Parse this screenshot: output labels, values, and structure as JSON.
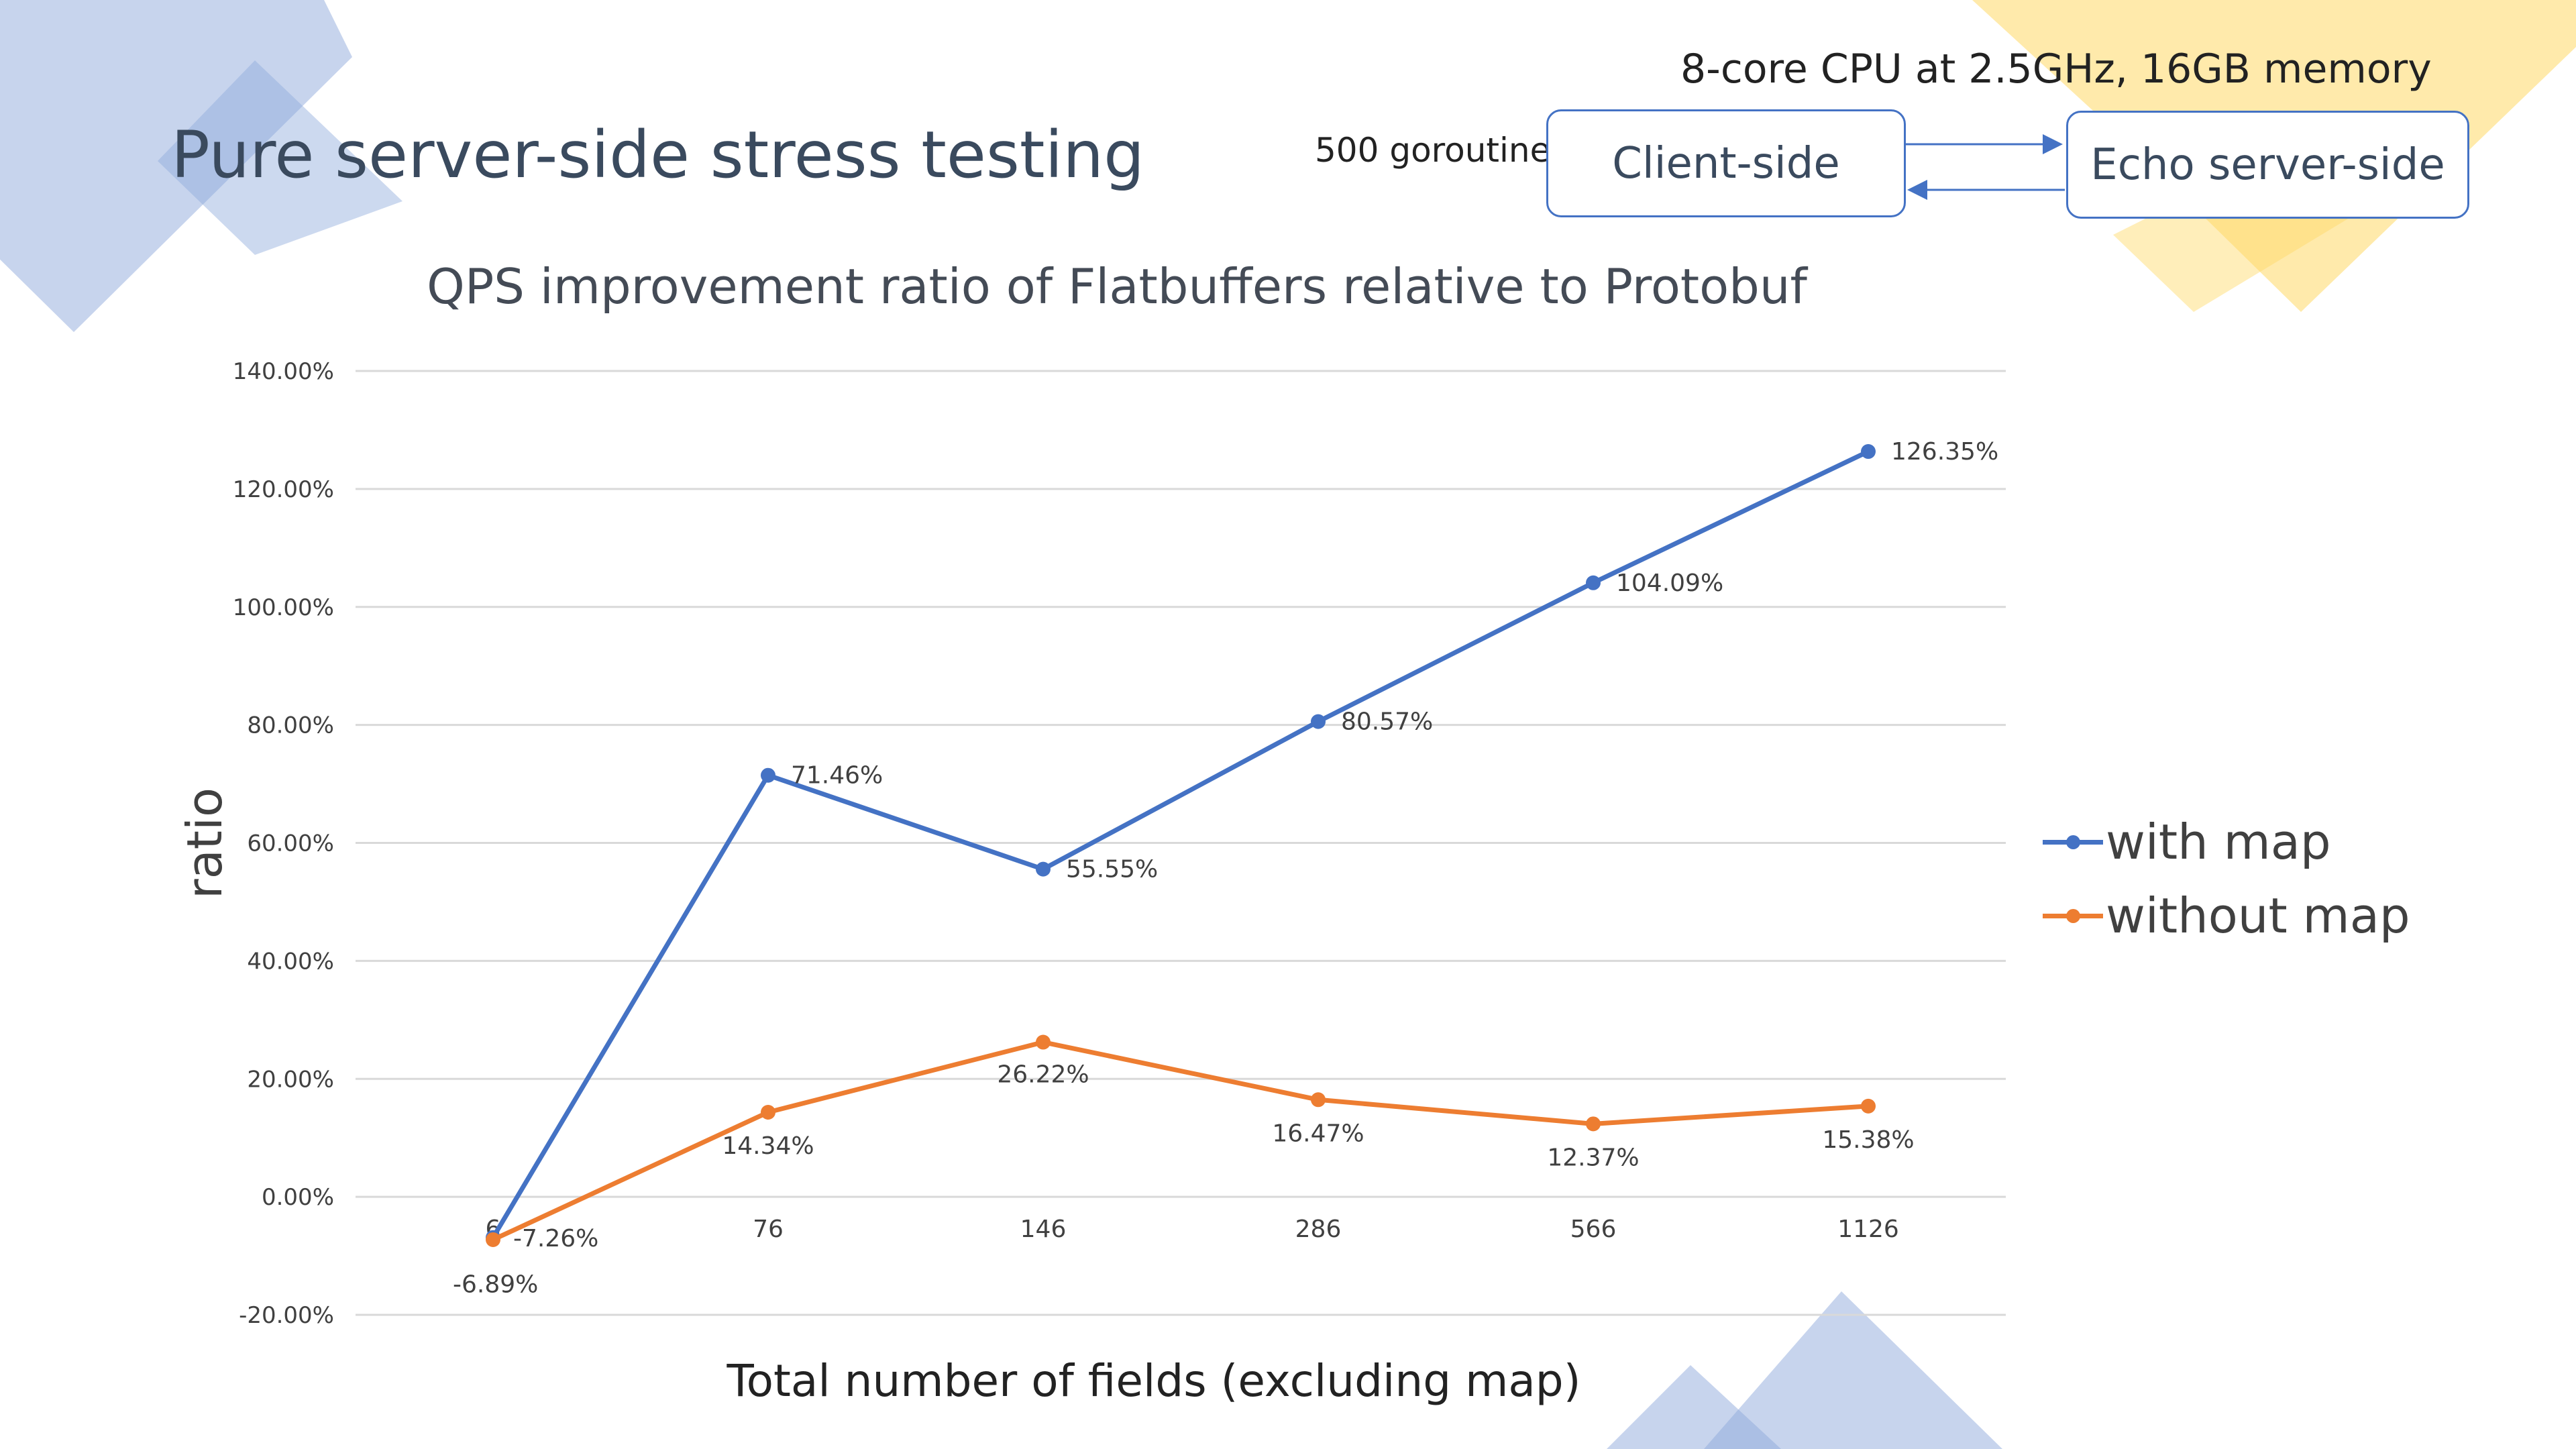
{
  "slide_title": "Pure server-side stress testing",
  "diagram": {
    "spec_label": "8-core CPU at 2.5GHz, 16GB memory",
    "goroutine_label": "500 goroutine",
    "client_label": "Client-side",
    "server_label": "Echo server-side"
  },
  "colors": {
    "with_map": "#4472c4",
    "without_map": "#ed7d31",
    "grid": "#d9d9d9",
    "deco_blue": "#8faadc",
    "deco_yellow": "#ffd966"
  },
  "chart_data": {
    "type": "line",
    "title": "QPS improvement ratio of Flatbuffers relative to Protobuf",
    "xlabel": "Total number of fields (excluding map)",
    "ylabel": "ratio",
    "categories": [
      "6",
      "76",
      "146",
      "286",
      "566",
      "1126"
    ],
    "yticks": [
      "140.00%",
      "120.00%",
      "100.00%",
      "80.00%",
      "60.00%",
      "40.00%",
      "20.00%",
      "0.00%",
      "-20.00%"
    ],
    "ylim": [
      -20,
      140
    ],
    "grid": true,
    "legend_position": "right",
    "series": [
      {
        "name": "with map",
        "values": [
          -6.89,
          71.46,
          55.55,
          80.57,
          104.09,
          126.35
        ],
        "labels": [
          "-6.89%",
          "71.46%",
          "55.55%",
          "80.57%",
          "104.09%",
          "126.35%"
        ]
      },
      {
        "name": "without map",
        "values": [
          -7.26,
          14.34,
          26.22,
          16.47,
          12.37,
          15.38
        ],
        "labels": [
          "-7.26%",
          "14.34%",
          "26.22%",
          "16.47%",
          "12.37%",
          "15.38%"
        ]
      }
    ]
  }
}
